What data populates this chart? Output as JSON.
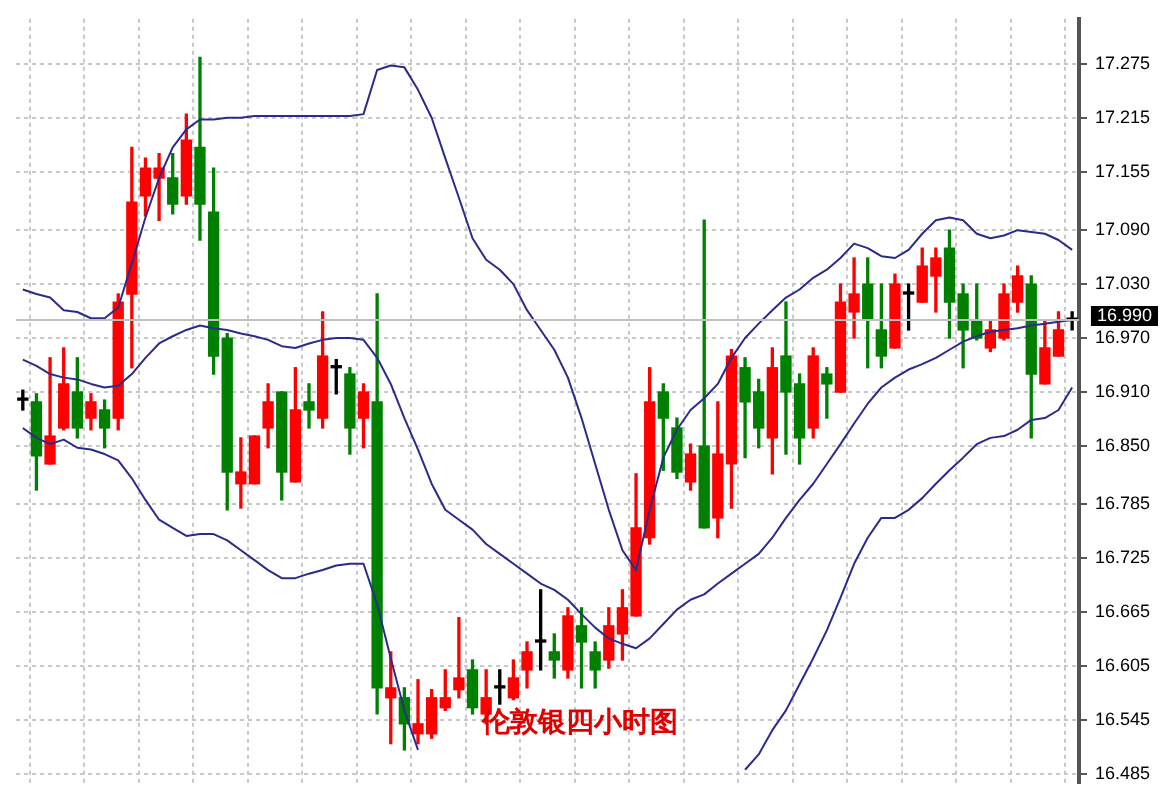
{
  "chart_data": {
    "type": "candlestick",
    "annotations": [
      "伦敦银四小时图"
    ],
    "categories": [
      null,
      null,
      null,
      null,
      null,
      null,
      null,
      null,
      null,
      null,
      null,
      null,
      null,
      null,
      null,
      null,
      null,
      null,
      null,
      null,
      null,
      null,
      null,
      null,
      null,
      null,
      null,
      null,
      null,
      null,
      null,
      null,
      null,
      null,
      null,
      null,
      null,
      null,
      null,
      null,
      null,
      null,
      null,
      null,
      null,
      null,
      null,
      null,
      null,
      null,
      null,
      null,
      null,
      null,
      null,
      null,
      null,
      null,
      null,
      null,
      null,
      null,
      null,
      null,
      null,
      null,
      null,
      null,
      null,
      null,
      null,
      null,
      null,
      null,
      null,
      null,
      null,
      null
    ],
    "ohlc": [
      [
        16.901,
        16.912,
        16.89,
        16.901
      ],
      [
        16.899,
        16.908,
        16.801,
        16.839
      ],
      [
        16.83,
        16.948,
        16.83,
        16.861
      ],
      [
        16.87,
        16.959,
        16.868,
        16.919
      ],
      [
        16.91,
        16.948,
        16.859,
        16.87
      ],
      [
        16.881,
        16.908,
        16.868,
        16.899
      ],
      [
        16.89,
        16.901,
        16.848,
        16.87
      ],
      [
        16.881,
        17.019,
        16.868,
        17.01
      ],
      [
        17.019,
        17.182,
        16.937,
        17.121
      ],
      [
        17.128,
        17.17,
        17.106,
        17.159
      ],
      [
        17.148,
        17.175,
        17.101,
        17.159
      ],
      [
        17.148,
        17.175,
        17.108,
        17.119
      ],
      [
        17.128,
        17.219,
        17.119,
        17.19
      ],
      [
        17.182,
        17.282,
        17.079,
        17.119
      ],
      [
        17.11,
        17.159,
        16.93,
        16.95
      ],
      [
        16.97,
        16.975,
        16.779,
        16.821
      ],
      [
        16.808,
        16.859,
        16.781,
        16.821
      ],
      [
        16.808,
        16.861,
        16.808,
        16.861
      ],
      [
        16.87,
        16.919,
        16.848,
        16.899
      ],
      [
        16.91,
        16.91,
        16.79,
        16.821
      ],
      [
        16.81,
        16.937,
        16.81,
        16.89
      ],
      [
        16.899,
        16.919,
        16.87,
        16.89
      ],
      [
        16.881,
        16.999,
        16.87,
        16.95
      ],
      [
        16.937,
        16.946,
        16.908,
        16.937
      ],
      [
        16.93,
        16.937,
        16.841,
        16.87
      ],
      [
        16.881,
        16.919,
        16.848,
        16.91
      ],
      [
        16.899,
        17.019,
        16.552,
        16.581
      ],
      [
        16.57,
        16.621,
        16.519,
        16.581
      ],
      [
        16.57,
        16.581,
        16.512,
        16.541
      ],
      [
        16.53,
        16.59,
        16.519,
        16.541
      ],
      [
        16.53,
        16.579,
        16.525,
        16.57
      ],
      [
        16.559,
        16.601,
        16.556,
        16.57
      ],
      [
        16.579,
        16.659,
        16.57,
        16.592
      ],
      [
        16.601,
        16.612,
        16.552,
        16.559
      ],
      [
        16.552,
        16.601,
        16.541,
        16.57
      ],
      [
        16.581,
        16.601,
        16.563,
        16.581
      ],
      [
        16.57,
        16.612,
        16.568,
        16.592
      ],
      [
        16.601,
        16.632,
        16.581,
        16.621
      ],
      [
        16.632,
        16.69,
        16.601,
        16.632
      ],
      [
        16.621,
        16.641,
        16.592,
        16.612
      ],
      [
        16.601,
        16.67,
        16.592,
        16.661
      ],
      [
        16.65,
        16.67,
        16.581,
        16.632
      ],
      [
        16.621,
        16.632,
        16.581,
        16.601
      ],
      [
        16.612,
        16.67,
        16.603,
        16.65
      ],
      [
        16.641,
        16.69,
        16.612,
        16.67
      ],
      [
        16.661,
        16.819,
        16.661,
        16.759
      ],
      [
        16.748,
        16.937,
        16.741,
        16.899
      ],
      [
        16.91,
        16.919,
        16.823,
        16.881
      ],
      [
        16.87,
        16.881,
        16.814,
        16.821
      ],
      [
        16.81,
        16.852,
        16.801,
        16.841
      ],
      [
        16.85,
        17.101,
        16.759,
        16.759
      ],
      [
        16.77,
        16.899,
        16.748,
        16.841
      ],
      [
        16.83,
        16.957,
        16.781,
        16.95
      ],
      [
        16.937,
        16.948,
        16.837,
        16.899
      ],
      [
        16.91,
        16.924,
        16.848,
        16.87
      ],
      [
        16.859,
        16.959,
        16.819,
        16.937
      ],
      [
        16.95,
        17.01,
        16.841,
        16.91
      ],
      [
        16.919,
        16.93,
        16.83,
        16.859
      ],
      [
        16.87,
        16.959,
        16.859,
        16.95
      ],
      [
        16.93,
        16.937,
        16.881,
        16.919
      ],
      [
        16.91,
        17.03,
        16.91,
        17.01
      ],
      [
        16.999,
        17.059,
        16.97,
        17.019
      ],
      [
        17.03,
        17.059,
        16.937,
        16.99
      ],
      [
        16.979,
        17.03,
        16.937,
        16.95
      ],
      [
        16.959,
        17.041,
        16.959,
        17.03
      ],
      [
        17.019,
        17.03,
        16.979,
        17.019
      ],
      [
        17.01,
        17.07,
        17.01,
        17.05
      ],
      [
        17.039,
        17.07,
        16.999,
        17.059
      ],
      [
        17.07,
        17.09,
        16.97,
        17.01
      ],
      [
        17.019,
        17.03,
        16.937,
        16.979
      ],
      [
        16.99,
        17.03,
        16.968,
        16.97
      ],
      [
        16.959,
        16.99,
        16.955,
        16.979
      ],
      [
        16.97,
        17.03,
        16.968,
        17.019
      ],
      [
        17.01,
        17.05,
        16.999,
        17.039
      ],
      [
        17.03,
        17.039,
        16.859,
        16.93
      ],
      [
        16.919,
        16.99,
        16.919,
        16.959
      ],
      [
        16.95,
        16.999,
        16.95,
        16.979
      ],
      [
        16.99,
        16.999,
        16.979,
        16.99
      ]
    ],
    "colors": [
      "#000000",
      "#008000",
      "#ff0000",
      "#ff0000",
      "#008000",
      "#ff0000",
      "#008000",
      "#ff0000",
      "#ff0000",
      "#ff0000",
      "#ff0000",
      "#008000",
      "#ff0000",
      "#008000",
      "#008000",
      "#008000",
      "#ff0000",
      "#ff0000",
      "#ff0000",
      "#008000",
      "#ff0000",
      "#008000",
      "#ff0000",
      "#000000",
      "#008000",
      "#ff0000",
      "#008000",
      "#ff0000",
      "#008000",
      "#ff0000",
      "#ff0000",
      "#ff0000",
      "#ff0000",
      "#008000",
      "#ff0000",
      "#000000",
      "#ff0000",
      "#ff0000",
      "#000000",
      "#008000",
      "#ff0000",
      "#008000",
      "#008000",
      "#ff0000",
      "#ff0000",
      "#ff0000",
      "#ff0000",
      "#008000",
      "#008000",
      "#ff0000",
      "#008000",
      "#ff0000",
      "#ff0000",
      "#008000",
      "#008000",
      "#ff0000",
      "#008000",
      "#008000",
      "#ff0000",
      "#008000",
      "#ff0000",
      "#ff0000",
      "#008000",
      "#008000",
      "#ff0000",
      "#000000",
      "#ff0000",
      "#ff0000",
      "#008000",
      "#008000",
      "#008000",
      "#ff0000",
      "#ff0000",
      "#ff0000",
      "#008000",
      "#ff0000",
      "#ff0000",
      "#000000"
    ],
    "series": [
      {
        "type": "line",
        "color": "#2b2b8c",
        "values": [
          17.024,
          17.019,
          17.015,
          17.001,
          16.999,
          16.992,
          16.992,
          17.004,
          17.053,
          17.104,
          17.148,
          17.182,
          17.202,
          17.213,
          17.213,
          17.215,
          17.215,
          17.217,
          17.217,
          17.217,
          17.217,
          17.217,
          17.217,
          17.217,
          17.217,
          17.219,
          17.268,
          17.273,
          17.271,
          17.246,
          17.215,
          17.17,
          17.126,
          17.081,
          17.057,
          17.046,
          17.03,
          17.001,
          16.979,
          16.957,
          16.926,
          16.881,
          16.83,
          16.779,
          16.734,
          16.712,
          16.779,
          16.837,
          16.868,
          16.89,
          16.903,
          16.919,
          16.948,
          16.97,
          16.986,
          17.001,
          17.015,
          17.024,
          17.037,
          17.046,
          17.059,
          17.075,
          17.07,
          17.061,
          17.059,
          17.068,
          17.086,
          17.101,
          17.104,
          17.101,
          17.086,
          17.081,
          17.084,
          17.09,
          17.088,
          17.086,
          17.079,
          17.068
        ]
      },
      {
        "type": "line",
        "color": "#2b2b8c",
        "values": [
          16.946,
          16.939,
          16.93,
          16.926,
          16.924,
          16.919,
          16.915,
          16.917,
          16.93,
          16.948,
          16.964,
          16.972,
          16.979,
          16.984,
          16.981,
          16.979,
          16.975,
          16.972,
          16.968,
          16.961,
          16.959,
          16.964,
          16.968,
          16.97,
          16.97,
          16.968,
          16.948,
          16.919,
          16.881,
          16.846,
          16.808,
          16.779,
          16.768,
          16.757,
          16.741,
          16.73,
          16.719,
          16.708,
          16.697,
          16.69,
          16.679,
          16.663,
          16.648,
          16.636,
          16.63,
          16.625,
          16.636,
          16.652,
          16.668,
          16.679,
          16.685,
          16.697,
          16.708,
          16.719,
          16.73,
          16.748,
          16.77,
          16.79,
          16.808,
          16.83,
          16.852,
          16.875,
          16.897,
          16.915,
          16.926,
          16.935,
          16.941,
          16.948,
          16.957,
          16.966,
          16.972,
          16.977,
          16.979,
          16.981,
          16.984,
          16.986,
          16.988,
          16.99
        ]
      },
      {
        "type": "line",
        "color": "#2b2b8c",
        "values": [
          16.87,
          16.859,
          16.852,
          16.857,
          16.848,
          16.846,
          16.841,
          16.834,
          16.814,
          16.79,
          16.768,
          16.759,
          16.75,
          16.752,
          16.752,
          16.745,
          16.734,
          16.723,
          16.712,
          16.703,
          16.703,
          16.708,
          16.712,
          16.717,
          16.719,
          16.719,
          16.674,
          16.614,
          16.556,
          16.512,
          null,
          null,
          null,
          null,
          null,
          null,
          null,
          null,
          null,
          null,
          null,
          null,
          null,
          null,
          null,
          null,
          null,
          null,
          null,
          null,
          null,
          null,
          null,
          16.49,
          16.507,
          16.534,
          16.556,
          16.585,
          16.614,
          16.645,
          16.681,
          16.719,
          16.748,
          16.77,
          16.77,
          16.779,
          16.792,
          16.808,
          16.823,
          16.837,
          16.852,
          16.859,
          16.861,
          16.868,
          16.879,
          16.881,
          16.89,
          16.915
        ]
      }
    ],
    "ylim": [
      16.475,
      17.325
    ],
    "yticks": [
      16.485,
      16.545,
      16.605,
      16.665,
      16.725,
      16.785,
      {
        "value": 16.85,
        "label": "16.850"
      },
      {
        "value": 16.91,
        "label": "16.910"
      },
      {
        "value": 16.97,
        "label": "16.970"
      },
      {
        "value": 17.03,
        "label": "17.030"
      },
      {
        "value": 17.09,
        "label": "17.090"
      },
      17.155,
      17.215,
      17.275
    ],
    "grid": true,
    "tick_labels": "y",
    "ref_lines": [
      {
        "axis": "y",
        "value": 16.99,
        "label": "16.990",
        "color": "#c0c0c0"
      }
    ]
  }
}
